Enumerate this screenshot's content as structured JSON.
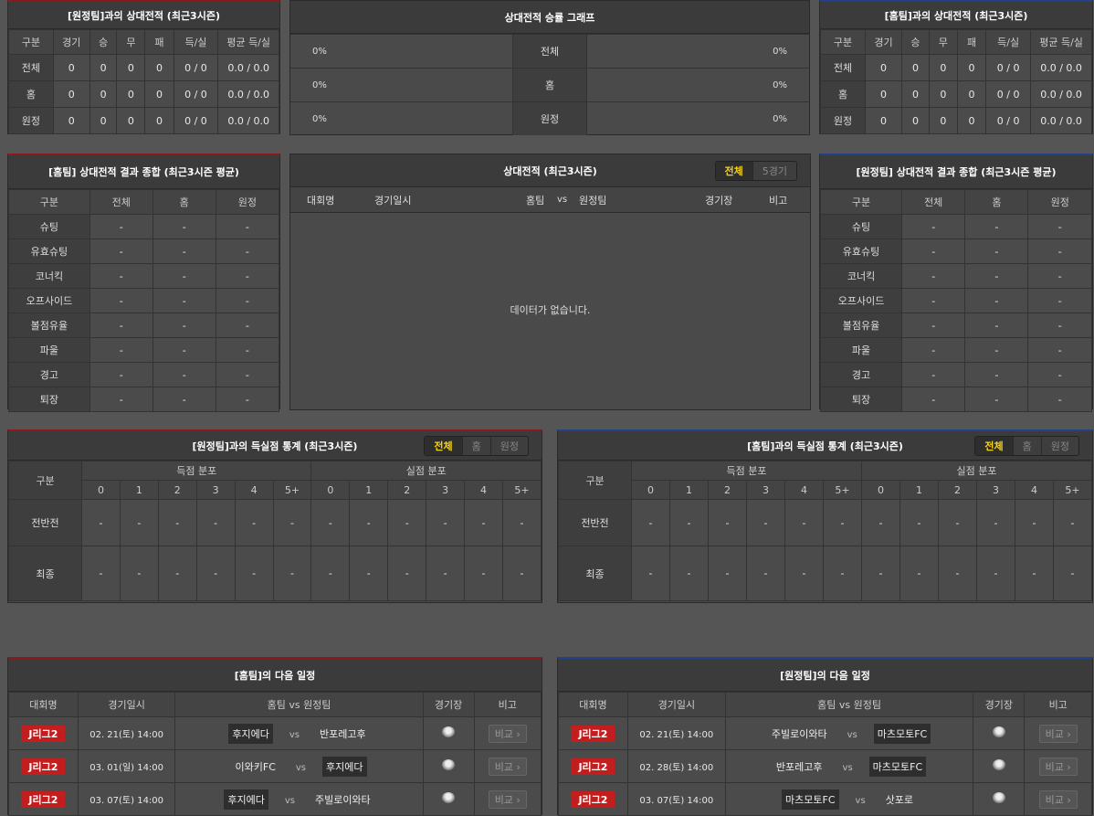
{
  "h2h_away": {
    "title": "[원정팀]과의 상대전적 (최근3시즌)",
    "headers": [
      "구분",
      "경기",
      "승",
      "무",
      "패",
      "득/실",
      "평균 득/실"
    ],
    "rows": [
      [
        "전체",
        "0",
        "0",
        "0",
        "0",
        "0 / 0",
        "0.0 / 0.0"
      ],
      [
        "홈",
        "0",
        "0",
        "0",
        "0",
        "0 / 0",
        "0.0 / 0.0"
      ],
      [
        "원정",
        "0",
        "0",
        "0",
        "0",
        "0 / 0",
        "0.0 / 0.0"
      ]
    ]
  },
  "h2h_home": {
    "title": "[홈팀]과의 상대전적 (최근3시즌)",
    "headers": [
      "구분",
      "경기",
      "승",
      "무",
      "패",
      "득/실",
      "평균 득/실"
    ],
    "rows": [
      [
        "전체",
        "0",
        "0",
        "0",
        "0",
        "0 / 0",
        "0.0 / 0.0"
      ],
      [
        "홈",
        "0",
        "0",
        "0",
        "0",
        "0 / 0",
        "0.0 / 0.0"
      ],
      [
        "원정",
        "0",
        "0",
        "0",
        "0",
        "0 / 0",
        "0.0 / 0.0"
      ]
    ]
  },
  "graph": {
    "title": "상대전적 승률 그래프",
    "rows": [
      {
        "label": "전체",
        "left": "0%",
        "right": "0%"
      },
      {
        "label": "홈",
        "left": "0%",
        "right": "0%"
      },
      {
        "label": "원정",
        "left": "0%",
        "right": "0%"
      }
    ]
  },
  "summary_home": {
    "title": "[홈팀] 상대전적 결과 종합 (최근3시즌 평균)",
    "headers": [
      "구분",
      "전체",
      "홈",
      "원정"
    ],
    "rows": [
      [
        "슈팅",
        "-",
        "-",
        "-"
      ],
      [
        "유효슈팅",
        "-",
        "-",
        "-"
      ],
      [
        "코너킥",
        "-",
        "-",
        "-"
      ],
      [
        "오프사이드",
        "-",
        "-",
        "-"
      ],
      [
        "볼점유율",
        "-",
        "-",
        "-"
      ],
      [
        "파울",
        "-",
        "-",
        "-"
      ],
      [
        "경고",
        "-",
        "-",
        "-"
      ],
      [
        "퇴장",
        "-",
        "-",
        "-"
      ]
    ]
  },
  "summary_away": {
    "title": "[원정팀] 상대전적 결과 종합 (최근3시즌 평균)",
    "headers": [
      "구분",
      "전체",
      "홈",
      "원정"
    ],
    "rows": [
      [
        "슈팅",
        "-",
        "-",
        "-"
      ],
      [
        "유효슈팅",
        "-",
        "-",
        "-"
      ],
      [
        "코너킥",
        "-",
        "-",
        "-"
      ],
      [
        "오프사이드",
        "-",
        "-",
        "-"
      ],
      [
        "볼점유율",
        "-",
        "-",
        "-"
      ],
      [
        "파울",
        "-",
        "-",
        "-"
      ],
      [
        "경고",
        "-",
        "-",
        "-"
      ],
      [
        "퇴장",
        "-",
        "-",
        "-"
      ]
    ]
  },
  "recent": {
    "title": "상대전적 (최근3시즌)",
    "tabs": [
      "전체",
      "5경기"
    ],
    "headers": [
      "대회명",
      "경기일시",
      "홈팀",
      "vs",
      "원정팀",
      "경기장",
      "비고"
    ],
    "empty": "데이터가 없습니다."
  },
  "goals_away": {
    "title": "[원정팀]과의 득실점 통계 (최근3시즌)",
    "tabs": [
      "전체",
      "홈",
      "원정"
    ],
    "label": "구분",
    "groups": [
      "득점 분포",
      "실점 분포"
    ],
    "cols": [
      "0",
      "1",
      "2",
      "3",
      "4",
      "5+",
      "0",
      "1",
      "2",
      "3",
      "4",
      "5+"
    ],
    "rows": [
      {
        "label": "전반전",
        "values": [
          "-",
          "-",
          "-",
          "-",
          "-",
          "-",
          "-",
          "-",
          "-",
          "-",
          "-",
          "-"
        ]
      },
      {
        "label": "최종",
        "values": [
          "-",
          "-",
          "-",
          "-",
          "-",
          "-",
          "-",
          "-",
          "-",
          "-",
          "-",
          "-"
        ]
      }
    ]
  },
  "goals_home": {
    "title": "[홈팀]과의 득실점 통계 (최근3시즌)",
    "tabs": [
      "전체",
      "홈",
      "원정"
    ],
    "label": "구분",
    "groups": [
      "득점 분포",
      "실점 분포"
    ],
    "cols": [
      "0",
      "1",
      "2",
      "3",
      "4",
      "5+",
      "0",
      "1",
      "2",
      "3",
      "4",
      "5+"
    ],
    "rows": [
      {
        "label": "전반전",
        "values": [
          "-",
          "-",
          "-",
          "-",
          "-",
          "-",
          "-",
          "-",
          "-",
          "-",
          "-",
          "-"
        ]
      },
      {
        "label": "최종",
        "values": [
          "-",
          "-",
          "-",
          "-",
          "-",
          "-",
          "-",
          "-",
          "-",
          "-",
          "-",
          "-"
        ]
      }
    ]
  },
  "next_home": {
    "title": "[홈팀]의 다음 일정",
    "headers": [
      "대회명",
      "경기일시",
      "홈팀  vs  원정팀",
      "경기장",
      "비고"
    ],
    "matches": [
      {
        "league": "J리그2",
        "date": "02. 21(토) 14:00",
        "home": "후지에다",
        "away": "반포레고후",
        "hl": "home"
      },
      {
        "league": "J리그2",
        "date": "03. 01(일) 14:00",
        "home": "이와키FC",
        "away": "후지에다",
        "hl": "away"
      },
      {
        "league": "J리그2",
        "date": "03. 07(토) 14:00",
        "home": "후지에다",
        "away": "주빌로이와타",
        "hl": "home"
      }
    ],
    "vs": "vs",
    "compare": "비교 ›"
  },
  "next_away": {
    "title": "[원정팀]의 다음 일정",
    "headers": [
      "대회명",
      "경기일시",
      "홈팀  vs  원정팀",
      "경기장",
      "비고"
    ],
    "matches": [
      {
        "league": "J리그2",
        "date": "02. 21(토) 14:00",
        "home": "주빌로이와타",
        "away": "마츠모토FC",
        "hl": "away"
      },
      {
        "league": "J리그2",
        "date": "02. 28(토) 14:00",
        "home": "반포레고후",
        "away": "마츠모토FC",
        "hl": "away"
      },
      {
        "league": "J리그2",
        "date": "03. 07(토) 14:00",
        "home": "마츠모토FC",
        "away": "삿포로",
        "hl": "home"
      }
    ],
    "vs": "vs",
    "compare": "비교 ›"
  },
  "colors": {
    "home_accent": "#8b1a1a",
    "away_accent": "#23408a",
    "league_badge": "#c21e1e",
    "active_tab": "#f5d21a"
  }
}
